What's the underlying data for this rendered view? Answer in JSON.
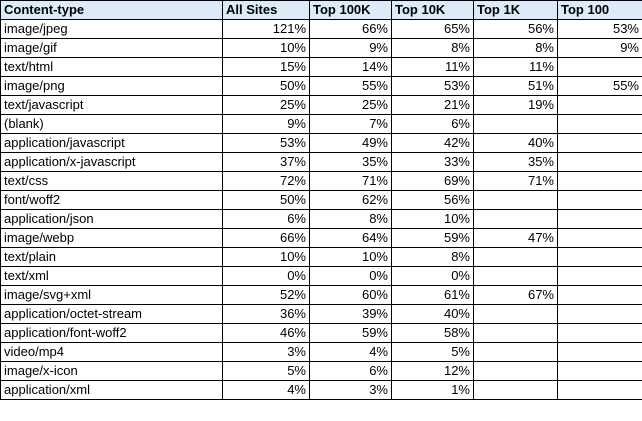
{
  "table": {
    "headers": [
      "Content-type",
      "All Sites",
      "Top 100K",
      "Top 10K",
      "Top 1K",
      "Top 100"
    ],
    "rows": [
      [
        "image/jpeg",
        "121%",
        "66%",
        "65%",
        "56%",
        "53%"
      ],
      [
        "image/gif",
        "10%",
        "9%",
        "8%",
        "8%",
        "9%"
      ],
      [
        "text/html",
        "15%",
        "14%",
        "11%",
        "11%",
        ""
      ],
      [
        "image/png",
        "50%",
        "55%",
        "53%",
        "51%",
        "55%"
      ],
      [
        "text/javascript",
        "25%",
        "25%",
        "21%",
        "19%",
        ""
      ],
      [
        "(blank)",
        "9%",
        "7%",
        "6%",
        "",
        ""
      ],
      [
        "application/javascript",
        "53%",
        "49%",
        "42%",
        "40%",
        ""
      ],
      [
        "application/x-javascript",
        "37%",
        "35%",
        "33%",
        "35%",
        ""
      ],
      [
        "text/css",
        "72%",
        "71%",
        "69%",
        "71%",
        ""
      ],
      [
        "font/woff2",
        "50%",
        "62%",
        "56%",
        "",
        ""
      ],
      [
        "application/json",
        "6%",
        "8%",
        "10%",
        "",
        ""
      ],
      [
        "image/webp",
        "66%",
        "64%",
        "59%",
        "47%",
        ""
      ],
      [
        "text/plain",
        "10%",
        "10%",
        "8%",
        "",
        ""
      ],
      [
        "text/xml",
        "0%",
        "0%",
        "0%",
        "",
        ""
      ],
      [
        "image/svg+xml",
        "52%",
        "60%",
        "61%",
        "67%",
        ""
      ],
      [
        "application/octet-stream",
        "36%",
        "39%",
        "40%",
        "",
        ""
      ],
      [
        "application/font-woff2",
        "46%",
        "59%",
        "58%",
        "",
        ""
      ],
      [
        "video/mp4",
        "3%",
        "4%",
        "5%",
        "",
        ""
      ],
      [
        "image/x-icon",
        "5%",
        "6%",
        "12%",
        "",
        ""
      ],
      [
        "application/xml",
        "4%",
        "3%",
        "1%",
        "",
        ""
      ]
    ]
  },
  "colors": {
    "header_background": "#dcebf7",
    "grid_line": "#000000"
  }
}
